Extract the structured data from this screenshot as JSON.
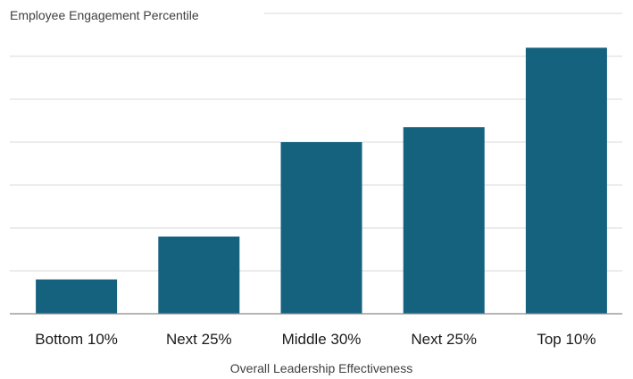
{
  "chart_data": {
    "type": "bar",
    "title": "",
    "ylabel": "Employee Engagement Percentile",
    "xlabel": "Overall Leadership Effectiveness",
    "categories": [
      "Bottom 10%",
      "Next 25%",
      "Middle 30%",
      "Next 25%",
      "Top 10%"
    ],
    "values": [
      8,
      18,
      40,
      43.5,
      62
    ],
    "ylim": [
      0,
      70
    ],
    "grid": true,
    "bar_color": "#15627f",
    "legend": "none"
  }
}
